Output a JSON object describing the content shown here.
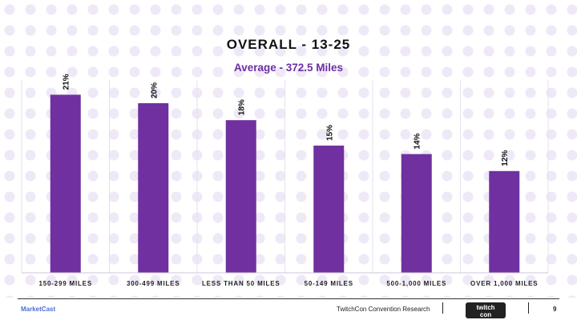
{
  "chart_data": {
    "type": "bar",
    "title": "OVERALL - 13-25",
    "subtitle": "Average - 372.5 Miles",
    "categories": [
      "150-299 MILES",
      "300-499 MILES",
      "LESS THAN 50 MILES",
      "50-149 MILES",
      "500-1,000 MILES",
      "OVER 1,000 MILES"
    ],
    "values": [
      21,
      20,
      18,
      15,
      14,
      12
    ],
    "data_labels": [
      "21%",
      "20%",
      "18%",
      "15%",
      "14%",
      "12%"
    ],
    "ylim": [
      0,
      25
    ],
    "bar_color": "#7030a0",
    "grid": false
  },
  "footer": {
    "brand": "MarketCast",
    "research": "TwitchCon Convention Research",
    "logo_text": "twitch con",
    "page_number": "9"
  }
}
